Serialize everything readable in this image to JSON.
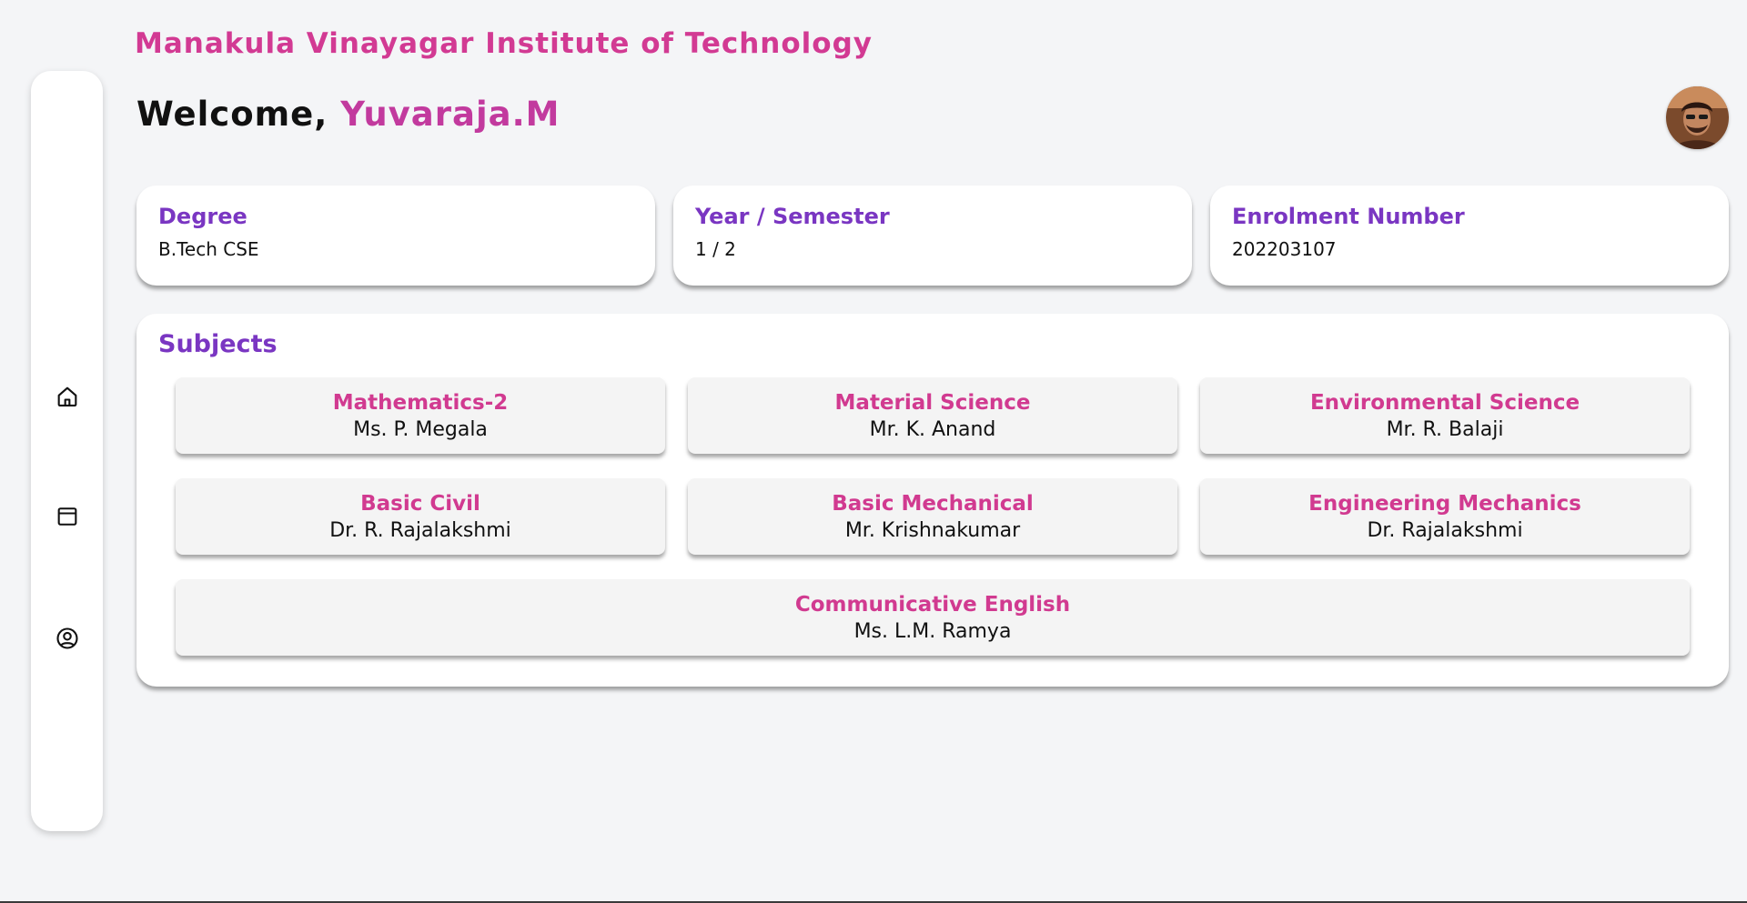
{
  "header": {
    "institute_name": "Manakula Vinayagar Institute of Technology",
    "welcome_prefix": "Welcome, ",
    "user_name": "Yuvaraja.M"
  },
  "sidebar": {
    "items": [
      {
        "icon": "home-icon"
      },
      {
        "icon": "calendar-icon"
      },
      {
        "icon": "user-circle-icon"
      }
    ]
  },
  "info_cards": [
    {
      "title": "Degree",
      "value": "B.Tech CSE"
    },
    {
      "title": "Year / Semester",
      "value": "1 / 2"
    },
    {
      "title": "Enrolment Number",
      "value": "202203107"
    }
  ],
  "subjects": {
    "title": "Subjects",
    "items": [
      {
        "name": "Mathematics-2",
        "teacher": "Ms. P. Megala"
      },
      {
        "name": "Material Science",
        "teacher": "Mr. K. Anand"
      },
      {
        "name": "Environmental Science",
        "teacher": "Mr. R. Balaji"
      },
      {
        "name": "Basic Civil",
        "teacher": "Dr. R. Rajalakshmi"
      },
      {
        "name": "Basic Mechanical",
        "teacher": "Mr. Krishnakumar"
      },
      {
        "name": "Engineering Mechanics",
        "teacher": "Dr. Rajalakshmi"
      },
      {
        "name": "Communicative English",
        "teacher": "Ms. L.M. Ramya"
      }
    ]
  },
  "colors": {
    "accent_pink": "#d23a93",
    "accent_purple": "#7a36c2",
    "background": "#f4f5f7",
    "card": "#ffffff"
  }
}
